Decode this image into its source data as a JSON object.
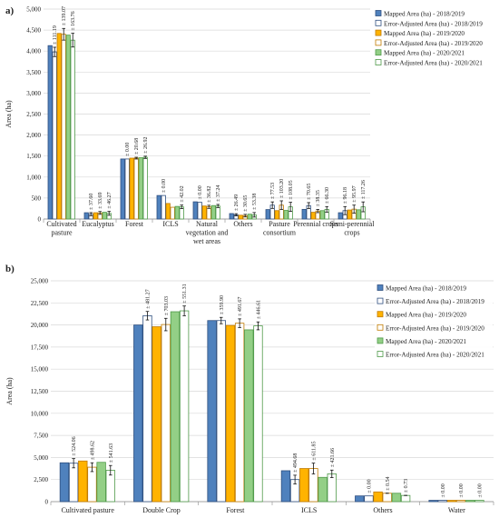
{
  "figure": {
    "panels": [
      "a)",
      "b)"
    ]
  },
  "colors": {
    "blue": "#4f81bd",
    "blue_dark": "#2f4f7f",
    "orange": "#ffb300",
    "orange_dark": "#c07a00",
    "green": "#93cf86",
    "green_dark": "#4f9a49",
    "hollow": "#ffffff",
    "grid": "#d9d9d9",
    "axis": "#8c8c8c"
  },
  "chart_data": [
    {
      "type": "bar",
      "panel": "a)",
      "ylabel": "Area (ha)",
      "ylim": [
        0,
        5000
      ],
      "ytick_step": 500,
      "grid": true,
      "legend_position": "top-right",
      "categories": [
        "Cultivated pasture",
        "Eucalyptus",
        "Forest",
        "ICLS",
        "Natural vegetation and wet areas",
        "Others",
        "Pasture consortium",
        "Perennial crops",
        "Semi-perennial crops"
      ],
      "category_lines": [
        [
          "Cultivated",
          "pasture"
        ],
        [
          "Eucalyptus"
        ],
        [
          "Forest"
        ],
        [
          "ICLS"
        ],
        [
          "Natural",
          "vegetation and",
          "wet areas"
        ],
        [
          "Others"
        ],
        [
          "Pasture",
          "consortium"
        ],
        [
          "Perennial crops"
        ],
        [
          "Semi-perennial",
          "crops"
        ]
      ],
      "series": [
        {
          "name": "Mapped Area (ha) - 2018/2019",
          "color": "blue",
          "hollow": false,
          "values": [
            4130,
            150,
            1430,
            560,
            410,
            130,
            225,
            230,
            150
          ]
        },
        {
          "name": "Error-Adjusted Area (ha) - 2018/2019",
          "color": "blue",
          "hollow": true,
          "values": [
            3980,
            115,
            1430,
            560,
            400,
            100,
            330,
            320,
            200
          ]
        },
        {
          "name": "Mapped Area (ha) - 2019/2020",
          "color": "orange",
          "hollow": false,
          "values": [
            4420,
            150,
            1450,
            370,
            310,
            90,
            200,
            160,
            215
          ]
        },
        {
          "name": "Error-Adjusted Area (ha) - 2019/2020",
          "color": "orange",
          "hollow": true,
          "values": [
            4400,
            145,
            1450,
            280,
            290,
            80,
            330,
            190,
            235
          ]
        },
        {
          "name": "Mapped Area (ha) - 2020/2021",
          "color": "green",
          "hollow": false,
          "values": [
            4380,
            160,
            1460,
            300,
            320,
            115,
            205,
            200,
            220
          ]
        },
        {
          "name": "Error-Adjusted Area (ha) - 2020/2021",
          "color": "green",
          "hollow": true,
          "values": [
            4260,
            135,
            1470,
            290,
            310,
            100,
            290,
            230,
            290
          ]
        }
      ],
      "error_labels": {
        "series_indices": [
          1,
          3,
          5
        ],
        "values": [
          [
            "± 111.19",
            "± 139.07",
            "± 163.76"
          ],
          [
            "± 37.60",
            "± 33.69",
            "± 46.27"
          ],
          [
            "± 0.00",
            "± 20.68",
            "± 26.92"
          ],
          [
            "± 0.00",
            "",
            "± 42.02"
          ],
          [
            "± 0.00",
            "± 36.82",
            "± 37.24"
          ],
          [
            "± 26.49",
            "± 30.65",
            "± 53.38"
          ],
          [
            "± 77.53",
            "± 103.20",
            "± 108.05"
          ],
          [
            "± 70.65",
            "± 38.35",
            "± 66.30"
          ],
          [
            "± 96.18",
            "± 95.97",
            "± 117.26"
          ]
        ],
        "errors": [
          [
            111.19,
            139.07,
            163.76
          ],
          [
            37.6,
            33.69,
            46.27
          ],
          [
            0.0,
            20.68,
            26.92
          ],
          [
            0.0,
            0,
            42.02
          ],
          [
            0.0,
            36.82,
            37.24
          ],
          [
            26.49,
            30.65,
            53.38
          ],
          [
            77.53,
            103.2,
            108.05
          ],
          [
            70.65,
            38.35,
            66.3
          ],
          [
            96.18,
            95.97,
            117.26
          ]
        ]
      }
    },
    {
      "type": "bar",
      "panel": "b)",
      "ylabel": "Area (ha)",
      "ylim": [
        0,
        25000
      ],
      "ytick_step": 2500,
      "grid": true,
      "legend_position": "top-right",
      "categories": [
        "Cultivated pasture",
        "Double Crop",
        "Forest",
        "ICLS",
        "Others",
        "Water"
      ],
      "category_lines": [
        [
          "Cultivated pasture"
        ],
        [
          "Double Crop"
        ],
        [
          "Forest"
        ],
        [
          "ICLS"
        ],
        [
          "Others"
        ],
        [
          "Water"
        ]
      ],
      "series": [
        {
          "name": "Mapped Area (ha) - 2018/2019",
          "color": "blue",
          "hollow": false,
          "values": [
            4400,
            20000,
            20500,
            3500,
            650,
            150
          ]
        },
        {
          "name": "Error-Adjusted Area (ha) - 2018/2019",
          "color": "blue",
          "hollow": true,
          "values": [
            4350,
            21050,
            20500,
            2500,
            650,
            150
          ]
        },
        {
          "name": "Mapped Area (ha) - 2019/2020",
          "color": "orange",
          "hollow": false,
          "values": [
            4600,
            19800,
            19950,
            3750,
            1100,
            150
          ]
        },
        {
          "name": "Error-Adjusted Area (ha) - 2019/2020",
          "color": "orange",
          "hollow": true,
          "values": [
            3900,
            20050,
            20200,
            3750,
            950,
            150
          ]
        },
        {
          "name": "Mapped Area (ha) - 2020/2021",
          "color": "green",
          "hollow": false,
          "values": [
            4450,
            21500,
            19450,
            2750,
            950,
            150
          ]
        },
        {
          "name": "Error-Adjusted Area (ha) - 2020/2021",
          "color": "green",
          "hollow": true,
          "values": [
            3550,
            21600,
            19900,
            3150,
            700,
            150
          ]
        }
      ],
      "error_labels": {
        "series_indices": [
          1,
          3,
          5
        ],
        "values": [
          [
            "± 524.06",
            "± 498.62",
            "± 541.63"
          ],
          [
            "± 481.27",
            "± 703.03",
            "± 551.31"
          ],
          [
            "± 359.90",
            "± 491.67",
            "± 446.61"
          ],
          [
            "± 494.68",
            "± 611.85",
            "± 421.66"
          ],
          [
            "± 0.00",
            "± 0.54",
            "± 0.73"
          ],
          [
            "± 0.00",
            "± 0.00",
            "± 0.00"
          ]
        ],
        "errors": [
          [
            524.06,
            498.62,
            541.63
          ],
          [
            481.27,
            703.03,
            551.31
          ],
          [
            359.9,
            491.67,
            446.61
          ],
          [
            494.68,
            611.85,
            421.66
          ],
          [
            0.0,
            0.54,
            0.73
          ],
          [
            0.0,
            0.0,
            0.0
          ]
        ]
      }
    }
  ]
}
